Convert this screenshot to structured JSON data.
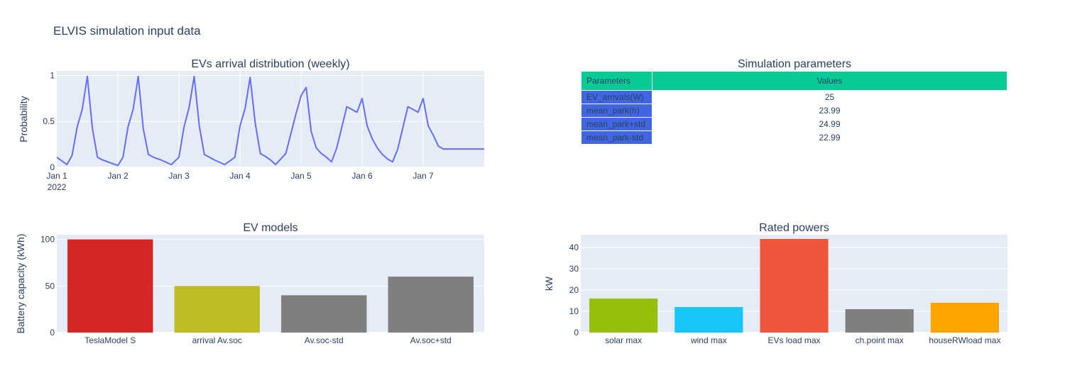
{
  "figure": {
    "title": "ELVIS simulation input data"
  },
  "colors": {
    "plot_bg": "#e5ecf6",
    "grid": "#ffffff",
    "text": "#2a3f5f",
    "line": "#636efa",
    "header": "#06cb96",
    "param_cell": "#4067e0"
  },
  "chart_data": [
    {
      "id": "arrivals",
      "type": "line",
      "title": "EVs arrival distribution (weekly)",
      "xlabel": "",
      "ylabel": "Probability",
      "x_hours": [
        0,
        4,
        8,
        12,
        16,
        20,
        24,
        28,
        32,
        36,
        40,
        44,
        48,
        52,
        56,
        60,
        64,
        68,
        72,
        76,
        80,
        84,
        88,
        92,
        96,
        100,
        104,
        108,
        112,
        116,
        120,
        124,
        128,
        132,
        136,
        140,
        144,
        148,
        152,
        156,
        160,
        164,
        168
      ],
      "x_labels": [
        "Jan 1",
        "2022",
        "Jan 2",
        "Jan 3",
        "Jan 4",
        "Jan 5",
        "Jan 6",
        "Jan 7"
      ],
      "x_label_offsets": [
        0,
        0,
        24,
        48,
        72,
        96,
        120,
        144
      ],
      "ylim": [
        0,
        1.05
      ],
      "yticks": [
        0,
        0.5,
        1
      ],
      "ytick_labels": [
        "0",
        "0.5",
        "1"
      ],
      "x_points": [
        0,
        4,
        6,
        8,
        10,
        12,
        14,
        16,
        18,
        21,
        24,
        26,
        28,
        30,
        32,
        34,
        36,
        38,
        41,
        45,
        48,
        50,
        52,
        54,
        56,
        58,
        60,
        62,
        66,
        70,
        72,
        74,
        76,
        78,
        80,
        82,
        84,
        86,
        90,
        94,
        96,
        98,
        100,
        102,
        104,
        106,
        108,
        110,
        114,
        118,
        120,
        122,
        124,
        126,
        128,
        130,
        132,
        134,
        138,
        142,
        144,
        146,
        148,
        150,
        152,
        154,
        156,
        158,
        161,
        165,
        168
      ],
      "y_points": [
        0.11,
        0.03,
        0.13,
        0.44,
        0.63,
        0.99,
        0.42,
        0.11,
        0.08,
        0.05,
        0.02,
        0.11,
        0.44,
        0.63,
        0.99,
        0.42,
        0.14,
        0.11,
        0.08,
        0.03,
        0.11,
        0.44,
        0.65,
        0.99,
        0.45,
        0.14,
        0.11,
        0.08,
        0.03,
        0.11,
        0.45,
        0.64,
        0.98,
        0.48,
        0.15,
        0.12,
        0.08,
        0.03,
        0.15,
        0.58,
        0.78,
        0.87,
        0.39,
        0.21,
        0.15,
        0.11,
        0.06,
        0.21,
        0.66,
        0.6,
        0.75,
        0.45,
        0.31,
        0.21,
        0.14,
        0.09,
        0.06,
        0.2,
        0.66,
        0.6,
        0.75,
        0.45,
        0.35,
        0.23,
        0.2,
        0.2,
        0.2,
        0.2,
        0.2,
        0.2,
        0.2
      ]
    },
    {
      "id": "ev-models",
      "type": "bar",
      "title": "EV models",
      "xlabel": "",
      "ylabel": "Battery capacity (kWh)",
      "categories": [
        "TeslaModel S",
        "arrival Av.soc",
        "Av.soc-std",
        "Av.soc+std"
      ],
      "values": [
        100,
        50,
        40,
        60
      ],
      "colors": [
        "#d62728",
        "#bcbd22",
        "#7f7f7f",
        "#7f7f7f"
      ],
      "ylim": [
        0,
        105
      ],
      "yticks": [
        0,
        50,
        100
      ],
      "ytick_labels": [
        "0",
        "50",
        "100"
      ]
    },
    {
      "id": "rated-powers",
      "type": "bar",
      "title": "Rated powers",
      "xlabel": "",
      "ylabel": "kW",
      "categories": [
        "solar max",
        "wind max",
        "EVs load max",
        "ch.point max",
        "houseRWload max"
      ],
      "values": [
        16,
        12,
        44,
        11,
        14
      ],
      "colors": [
        "#96bf0d",
        "#19c6fb",
        "#ef553b",
        "#7f7f7f",
        "#ffa400"
      ],
      "ylim": [
        0,
        46
      ],
      "yticks": [
        0,
        10,
        20,
        30,
        40
      ],
      "ytick_labels": [
        "0",
        "10",
        "20",
        "30",
        "40"
      ]
    }
  ],
  "table": {
    "title": "Simulation parameters",
    "header": [
      "Parameters",
      "Values"
    ],
    "rows": [
      {
        "param": "EV_arrivals(W)",
        "value": "25"
      },
      {
        "param": "mean_park(h)",
        "value": "23.99"
      },
      {
        "param": "mean_park+std",
        "value": "24.99"
      },
      {
        "param": "mean_park-std",
        "value": "22.99"
      }
    ]
  }
}
